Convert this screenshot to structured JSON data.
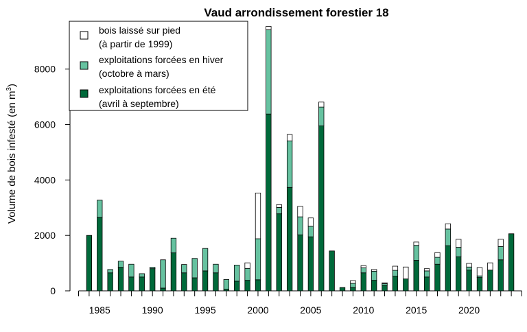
{
  "chart_data": {
    "type": "bar",
    "stacked": true,
    "title": "Vaud arrondissement forestier 18",
    "ylabel": "Volume de bois infesté (en m",
    "ylabel_superscript": "3",
    "ylabel_close": ")",
    "xlabel": "",
    "ylim": [
      0,
      9800
    ],
    "xlim": [
      1983,
      2025
    ],
    "yticks": [
      0,
      2000,
      4000,
      6000,
      8000
    ],
    "xticks": [
      1985,
      1990,
      1995,
      2000,
      2005,
      2010,
      2015,
      2020
    ],
    "legend_placement": "top-left",
    "grid": false,
    "colors": {
      "ete": "#00693a",
      "hiver": "#66c2a0",
      "pied": "#ffffff",
      "stroke": "#000000"
    },
    "categories": [
      1984,
      1985,
      1986,
      1987,
      1988,
      1989,
      1990,
      1991,
      1992,
      1993,
      1994,
      1995,
      1996,
      1997,
      1998,
      1999,
      2000,
      2001,
      2002,
      2003,
      2004,
      2005,
      2006,
      2007,
      2008,
      2009,
      2010,
      2011,
      2012,
      2013,
      2014,
      2015,
      2016,
      2017,
      2018,
      2019,
      2020,
      2021,
      2022,
      2023,
      2024
    ],
    "series": [
      {
        "key": "ete",
        "name": "exploitations forcées en été",
        "name_line2": "(avril à septembre)",
        "values": [
          2000,
          2650,
          650,
          850,
          500,
          500,
          800,
          100,
          1370,
          650,
          470,
          720,
          650,
          60,
          350,
          380,
          400,
          6380,
          2780,
          3730,
          2020,
          1950,
          5950,
          1440,
          120,
          120,
          650,
          380,
          200,
          530,
          430,
          1100,
          500,
          960,
          1630,
          1230,
          750,
          480,
          750,
          1120,
          2060
        ]
      },
      {
        "key": "hiver",
        "name": "exploitations forcées en hiver",
        "name_line2": "(octobre à mars)",
        "values": [
          0,
          620,
          120,
          220,
          460,
          120,
          50,
          1020,
          530,
          300,
          700,
          810,
          310,
          350,
          580,
          430,
          1480,
          3040,
          230,
          1680,
          650,
          380,
          680,
          0,
          0,
          150,
          180,
          330,
          60,
          210,
          0,
          540,
          220,
          250,
          600,
          340,
          110,
          60,
          0,
          480,
          0
        ]
      },
      {
        "key": "pied",
        "name": "bois laissé sur pied",
        "name_line2": "(à partir de 1999)",
        "values": [
          0,
          0,
          0,
          0,
          0,
          0,
          0,
          0,
          0,
          0,
          0,
          0,
          0,
          0,
          0,
          200,
          1650,
          120,
          100,
          230,
          380,
          300,
          180,
          0,
          0,
          100,
          80,
          60,
          30,
          150,
          430,
          120,
          80,
          170,
          190,
          290,
          130,
          300,
          260,
          260,
          0
        ]
      }
    ]
  }
}
